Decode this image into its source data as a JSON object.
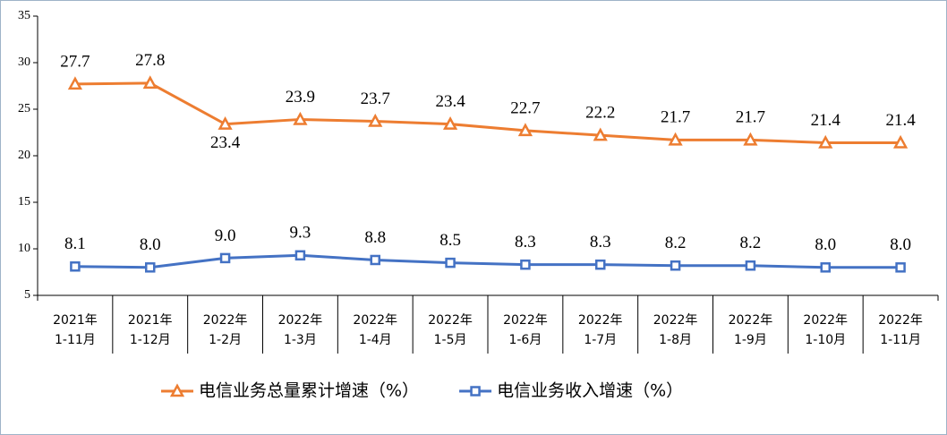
{
  "chart_data": {
    "type": "line",
    "categories": [
      [
        "2021年",
        "1-11月"
      ],
      [
        "2021年",
        "1-12月"
      ],
      [
        "2022年",
        "1-2月"
      ],
      [
        "2022年",
        "1-3月"
      ],
      [
        "2022年",
        "1-4月"
      ],
      [
        "2022年",
        "1-5月"
      ],
      [
        "2022年",
        "1-6月"
      ],
      [
        "2022年",
        "1-7月"
      ],
      [
        "2022年",
        "1-8月"
      ],
      [
        "2022年",
        "1-9月"
      ],
      [
        "2022年",
        "1-10月"
      ],
      [
        "2022年",
        "1-11月"
      ]
    ],
    "series": [
      {
        "name": "电信业务总量累计增速（%）",
        "color": "#ed7d31",
        "marker": "triangle",
        "values": [
          27.7,
          27.8,
          23.4,
          23.9,
          23.7,
          23.4,
          22.7,
          22.2,
          21.7,
          21.7,
          21.4,
          21.4
        ],
        "value_labels": [
          "27.7",
          "27.8",
          "23.4",
          "23.9",
          "23.7",
          "23.4",
          "22.7",
          "22.2",
          "21.7",
          "21.7",
          "21.4",
          "21.4"
        ]
      },
      {
        "name": "电信业务收入增速（%）",
        "color": "#4472c4",
        "marker": "square",
        "values": [
          8.1,
          8.0,
          9.0,
          9.3,
          8.8,
          8.5,
          8.3,
          8.3,
          8.2,
          8.2,
          8.0,
          8.0
        ],
        "value_labels": [
          "8.1",
          "8.0",
          "9.0",
          "9.3",
          "8.8",
          "8.5",
          "8.3",
          "8.3",
          "8.2",
          "8.2",
          "8.0",
          "8.0"
        ]
      }
    ],
    "ylim": [
      5,
      35
    ],
    "yticks": [
      5,
      10,
      15,
      20,
      25,
      30,
      35
    ],
    "grid": false,
    "legend": "bottom"
  }
}
